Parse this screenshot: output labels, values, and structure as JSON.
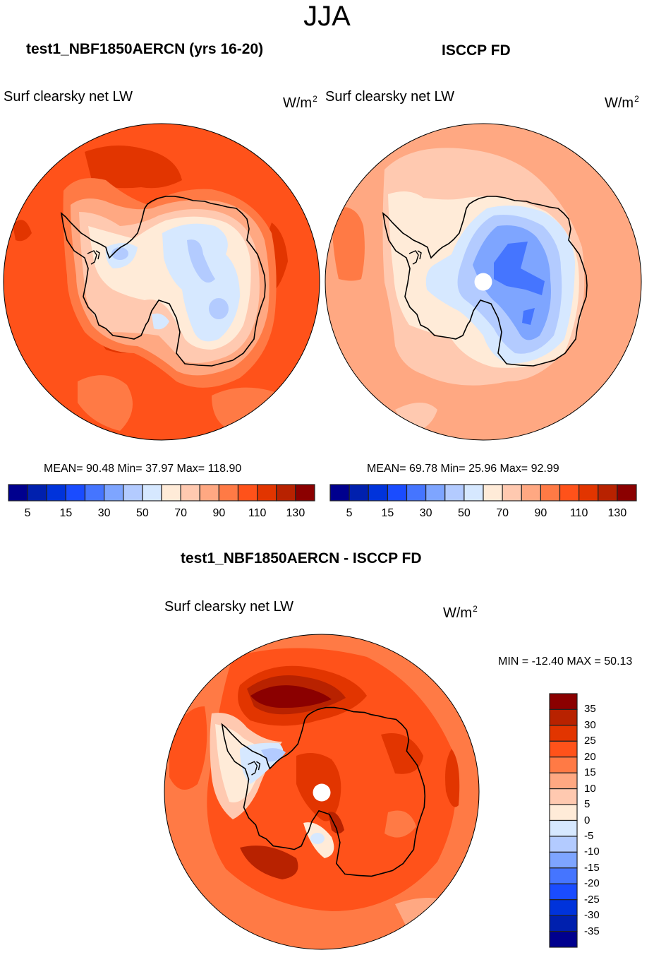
{
  "page": {
    "title": "JJA"
  },
  "palette": [
    "#00008E",
    "#0020AE",
    "#0033DB",
    "#1A4CFF",
    "#4575FF",
    "#7EA5FF",
    "#B3CBFF",
    "#D6E8FF",
    "#FFEBD8",
    "#FFC9B0",
    "#FFA882",
    "#FF7A45",
    "#FF521A",
    "#E23500",
    "#B82200",
    "#8B0000"
  ],
  "panels": [
    {
      "id": "model",
      "title": "test1_NBF1850AERCN (yrs 16-20)",
      "variable_label": "Surf clearsky net LW",
      "units": "W/m",
      "units_exp": "2",
      "stats_text": "MEAN=  90.48  Min=  37.97  Max= 118.90",
      "mean": 90.48,
      "min": 37.97,
      "max": 118.9
    },
    {
      "id": "obs",
      "title": "ISCCP FD",
      "variable_label": "Surf clearsky net LW",
      "units": "W/m",
      "units_exp": "2",
      "stats_text": "MEAN=  69.78  Min=  25.96  Max=  92.99",
      "mean": 69.78,
      "min": 25.96,
      "max": 92.99
    },
    {
      "id": "diff",
      "title": "test1_NBF1850AERCN - ISCCP FD",
      "variable_label": "Surf clearsky net LW",
      "units": "W/m",
      "units_exp": "2",
      "stats_text": "MIN = -12.40 MAX =  50.13",
      "min": -12.4,
      "max": 50.13
    }
  ],
  "chart_data": [
    {
      "type": "heatmap",
      "projection": "south-polar-stereographic",
      "title": "test1_NBF1850AERCN (yrs 16-20)",
      "subtitle": "Surf clearsky net LW",
      "units": "W/m^2",
      "season": "JJA",
      "contour_levels": [
        5,
        10,
        15,
        20,
        30,
        40,
        50,
        60,
        70,
        80,
        90,
        100,
        110,
        120,
        130
      ],
      "colorbar_tick_labels": [
        "5",
        "15",
        "30",
        "50",
        "70",
        "90",
        "110",
        "130"
      ],
      "colorbar_orientation": "horizontal",
      "colorbar_placement": "bottom",
      "stats": {
        "mean": 90.48,
        "min": 37.97,
        "max": 118.9
      },
      "regions": [
        {
          "name": "open-ocean",
          "value_band": [
            100,
            110
          ]
        },
        {
          "name": "ocean-maxima-north-of-peninsula",
          "value_band": [
            110,
            120
          ]
        },
        {
          "name": "coastal-sea-ice-ring",
          "value_band": [
            80,
            100
          ]
        },
        {
          "name": "antarctic-margin",
          "value_band": [
            60,
            80
          ]
        },
        {
          "name": "east-antarctic-plateau",
          "value_band": [
            50,
            60
          ]
        },
        {
          "name": "plateau-minima",
          "value_band": [
            40,
            50
          ]
        }
      ]
    },
    {
      "type": "heatmap",
      "projection": "south-polar-stereographic",
      "title": "ISCCP FD",
      "subtitle": "Surf clearsky net LW",
      "units": "W/m^2",
      "season": "JJA",
      "contour_levels": [
        5,
        10,
        15,
        20,
        30,
        40,
        50,
        60,
        70,
        80,
        90,
        100,
        110,
        120,
        130
      ],
      "colorbar_tick_labels": [
        "5",
        "15",
        "30",
        "50",
        "70",
        "90",
        "110",
        "130"
      ],
      "colorbar_orientation": "horizontal",
      "colorbar_placement": "bottom",
      "stats": {
        "mean": 69.78,
        "min": 25.96,
        "max": 92.99
      },
      "missing_pole": true,
      "regions": [
        {
          "name": "outer-ocean",
          "value_band": [
            80,
            90
          ]
        },
        {
          "name": "southern-ocean-ring",
          "value_band": [
            70,
            80
          ]
        },
        {
          "name": "west-antarctica-and-coast",
          "value_band": [
            60,
            70
          ]
        },
        {
          "name": "east-antarctic-margin",
          "value_band": [
            50,
            60
          ]
        },
        {
          "name": "east-antarctic-interior",
          "value_band": [
            40,
            50
          ]
        },
        {
          "name": "east-antarctic-high-plateau",
          "value_band": [
            30,
            40
          ]
        },
        {
          "name": "plateau-core",
          "value_band": [
            20,
            30
          ]
        }
      ]
    },
    {
      "type": "heatmap",
      "projection": "south-polar-stereographic",
      "title": "test1_NBF1850AERCN - ISCCP FD",
      "subtitle": "Surf clearsky net LW",
      "units": "W/m^2",
      "season": "JJA",
      "contour_levels": [
        -35,
        -30,
        -25,
        -20,
        -15,
        -10,
        -5,
        0,
        5,
        10,
        15,
        20,
        25,
        30,
        35
      ],
      "colorbar_tick_labels": [
        "35",
        "30",
        "25",
        "20",
        "15",
        "10",
        "5",
        "0",
        "-5",
        "-10",
        "-15",
        "-20",
        "-25",
        "-30",
        "-35"
      ],
      "colorbar_orientation": "vertical",
      "colorbar_placement": "right",
      "stats": {
        "min": -12.4,
        "max": 50.13
      },
      "missing_pole": true,
      "regions": [
        {
          "name": "open-ocean",
          "value_band": [
            15,
            25
          ]
        },
        {
          "name": "weddell-sea-maximum",
          "value_band": [
            35,
            50.13
          ]
        },
        {
          "name": "ross-amundsen-ocean-maxima",
          "value_band": [
            25,
            35
          ]
        },
        {
          "name": "east-antarctic-interior",
          "value_band": [
            20,
            30
          ]
        },
        {
          "name": "antarctic-peninsula-and-ronne",
          "value_band": [
            -10,
            5
          ]
        },
        {
          "name": "ross-ice-shelf",
          "value_band": [
            -5,
            10
          ]
        }
      ]
    }
  ],
  "colorbars": {
    "top_ticks": [
      "5",
      "15",
      "30",
      "50",
      "70",
      "90",
      "110",
      "130"
    ],
    "diff_ticks": [
      "35",
      "30",
      "25",
      "20",
      "15",
      "10",
      "5",
      "0",
      "-5",
      "-10",
      "-15",
      "-20",
      "-25",
      "-30",
      "-35"
    ]
  }
}
